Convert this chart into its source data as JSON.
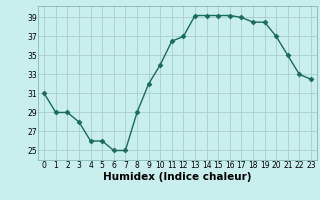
{
  "x": [
    0,
    1,
    2,
    3,
    4,
    5,
    6,
    7,
    8,
    9,
    10,
    11,
    12,
    13,
    14,
    15,
    16,
    17,
    18,
    19,
    20,
    21,
    22,
    23
  ],
  "y": [
    31,
    29,
    29,
    28,
    26,
    26,
    25,
    25,
    29,
    32,
    34,
    36.5,
    37,
    39.2,
    39.2,
    39.2,
    39.2,
    39,
    38.5,
    38.5,
    37,
    35,
    33,
    32.5
  ],
  "line_color": "#1a6b5a",
  "marker_color": "#1a6b5a",
  "bg_color": "#c8eeee",
  "grid_color": "#aacccc",
  "xlabel": "Humidex (Indice chaleur)",
  "xlabel_fontsize": 7.5,
  "yticks": [
    25,
    27,
    29,
    31,
    33,
    35,
    37,
    39
  ],
  "xticks": [
    0,
    1,
    2,
    3,
    4,
    5,
    6,
    7,
    8,
    9,
    10,
    11,
    12,
    13,
    14,
    15,
    16,
    17,
    18,
    19,
    20,
    21,
    22,
    23
  ],
  "ylim": [
    24.0,
    40.2
  ],
  "xlim": [
    -0.5,
    23.5
  ]
}
